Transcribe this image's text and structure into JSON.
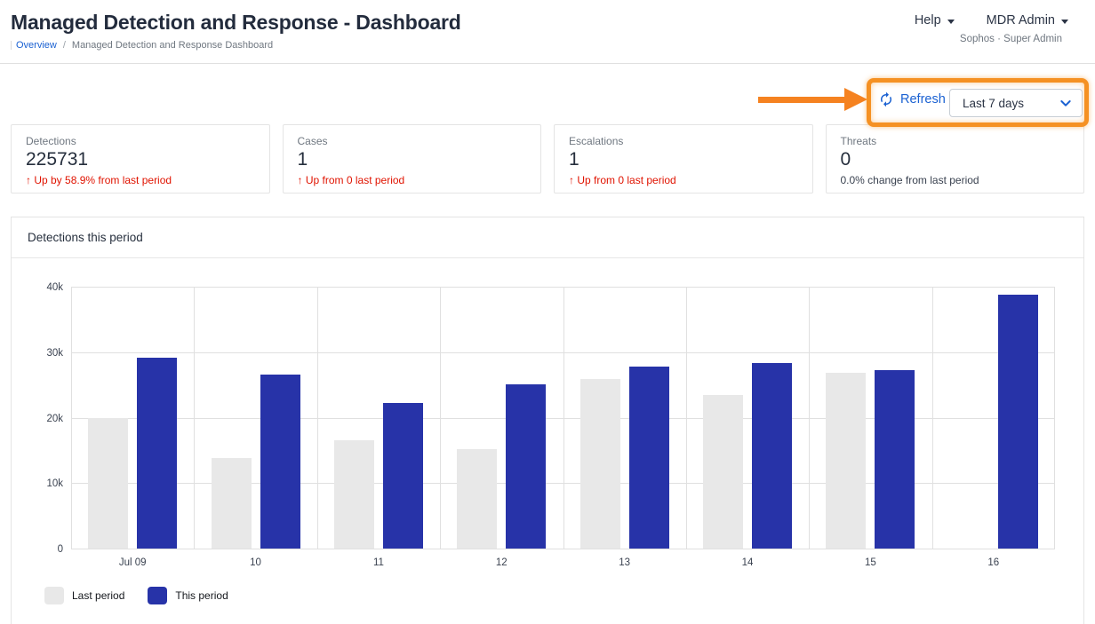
{
  "header": {
    "title": "Managed Detection and Response - Dashboard",
    "breadcrumb": {
      "link": "Overview",
      "separator": "/",
      "current": "Managed Detection and Response Dashboard"
    },
    "menus": {
      "help": "Help",
      "account": "MDR Admin"
    },
    "context": "Sophos · Super Admin"
  },
  "toolbar": {
    "refresh_label": "Refresh",
    "period_value": "Last 7 days"
  },
  "stats": {
    "cards": [
      {
        "label": "Detections",
        "value": "225731",
        "delta": "↑ Up by 58.9% from last period",
        "tone": "alert"
      },
      {
        "label": "Cases",
        "value": "1",
        "delta": "↑ Up from 0 last period",
        "tone": "alert"
      },
      {
        "label": "Escalations",
        "value": "1",
        "delta": "↑ Up from 0 last period",
        "tone": "alert"
      },
      {
        "label": "Threats",
        "value": "0",
        "delta": "0.0% change from last period",
        "tone": "neutral"
      }
    ]
  },
  "chart": {
    "title": "Detections this period"
  },
  "chart_data": {
    "type": "bar",
    "title": "Detections this period",
    "categories": [
      "Jul 09",
      "10",
      "11",
      "12",
      "13",
      "14",
      "15",
      "16"
    ],
    "series": [
      {
        "name": "Last period",
        "color": "#e8e8e8",
        "values": [
          19900,
          13900,
          16500,
          15200,
          25900,
          23500,
          26900,
          0
        ]
      },
      {
        "name": "This period",
        "color": "#2733a8",
        "values": [
          29200,
          26600,
          22300,
          25100,
          27800,
          28400,
          27300,
          38800
        ]
      }
    ],
    "ylim": [
      0,
      40000
    ],
    "yticks": [
      {
        "label": "0",
        "value": 0
      },
      {
        "label": "10k",
        "value": 10000
      },
      {
        "label": "20k",
        "value": 20000
      },
      {
        "label": "30k",
        "value": 30000
      },
      {
        "label": "40k",
        "value": 40000
      }
    ],
    "grid": true,
    "legend_position": "bottom-left"
  },
  "colors": {
    "accent_blue": "#1a61d2",
    "annotation_orange": "#f58220",
    "alert_red": "#e01300",
    "bar_last_period": "#e8e8e8",
    "bar_this_period": "#2733a8"
  }
}
